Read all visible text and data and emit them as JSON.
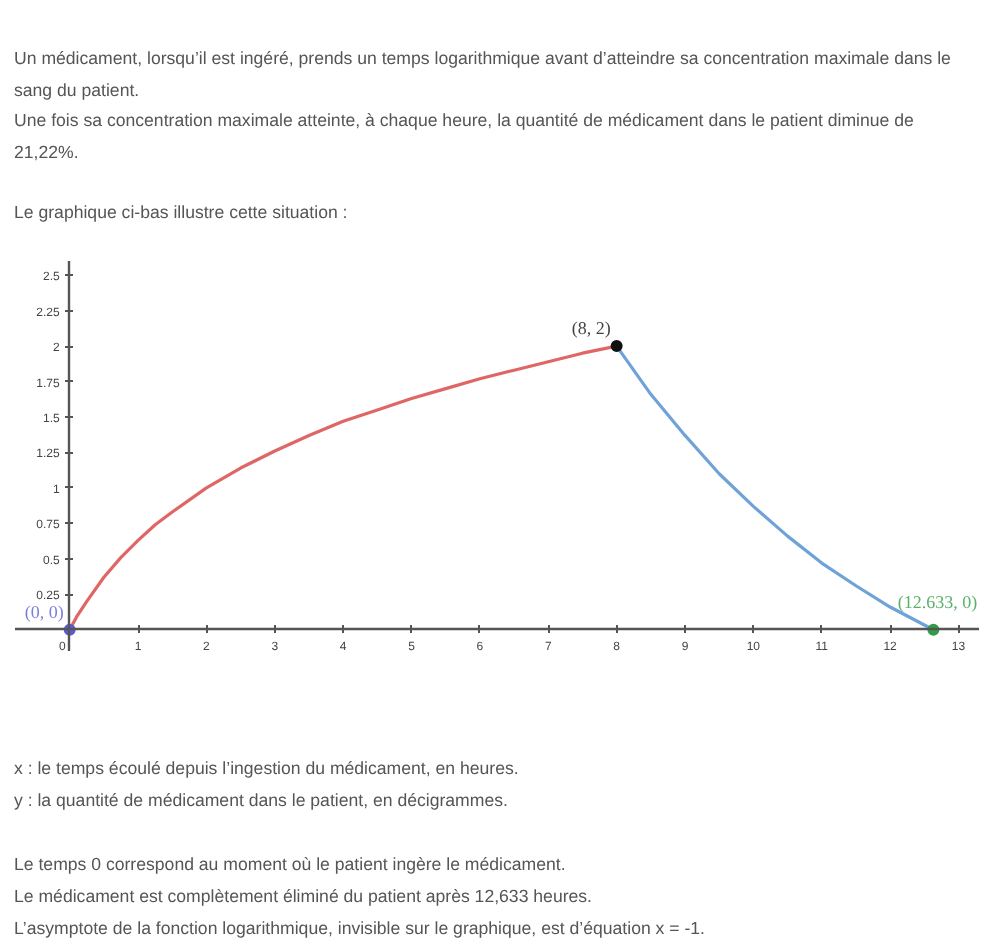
{
  "chart_data": {
    "type": "line",
    "title": "Un médicament, lorsqu’il est ingéré, prends un temps logarithmique avant d’atteindre sa concentration maximale dans le sang du patient.",
    "subtitle": "Une fois sa concentration maximale atteinte, à chaque heure, la quantité de médicament dans le patient diminue de 21,22%.",
    "annotations": [
      "Le graphique ci-bas illustre cette situation :",
      "x : le temps écoulé depuis l’ingestion du médicament, en heures.",
      "y : la quantité de médicament dans le patient, en décigrammes.",
      "Le temps 0 correspond au moment où le patient ingère le médicament.",
      "Le médicament est complètement éliminé du patient après 12,633 heures.",
      "L’asymptote de la fonction logarithmique, invisible sur le graphique, est d’équation x = -1."
    ],
    "xlim": [
      -0.8,
      13.3
    ],
    "ylim": [
      -0.15,
      2.6
    ],
    "xticks": [
      0,
      1,
      2,
      3,
      4,
      5,
      6,
      7,
      8,
      9,
      10,
      11,
      12,
      13
    ],
    "yticks": [
      0.25,
      0.5,
      0.75,
      1,
      1.25,
      1.5,
      1.75,
      2,
      2.25,
      2.5
    ],
    "grid": false,
    "series": [
      {
        "color": "#e06666",
        "x": [
          0,
          0.1,
          0.25,
          0.5,
          0.75,
          1,
          1.25,
          1.5,
          2,
          2.5,
          3,
          3.5,
          4,
          4.5,
          5,
          5.5,
          6,
          6.5,
          7,
          7.5,
          8
        ],
        "values": [
          0,
          0.09,
          0.2,
          0.37,
          0.51,
          0.63,
          0.74,
          0.83,
          1.0,
          1.14,
          1.26,
          1.37,
          1.47,
          1.55,
          1.63,
          1.7,
          1.77,
          1.83,
          1.89,
          1.95,
          2
        ]
      },
      {
        "color": "#6fa3d8",
        "x": [
          8,
          8.5,
          9,
          9.5,
          10,
          10.5,
          11,
          11.5,
          12,
          12.633
        ],
        "values": [
          2,
          1.66,
          1.37,
          1.1,
          0.87,
          0.66,
          0.47,
          0.31,
          0.16,
          0
        ]
      },
      {
        "type": "scatter",
        "marker": "circle",
        "x": [
          0,
          8,
          12.633
        ],
        "values": [
          0,
          2,
          0
        ],
        "colors": [
          "#5c5cd6",
          "#111111",
          "#2f9e44"
        ],
        "value_labels": [
          "(0, 0)",
          "(8, 2)",
          "(12.633, 0)"
        ]
      }
    ]
  }
}
